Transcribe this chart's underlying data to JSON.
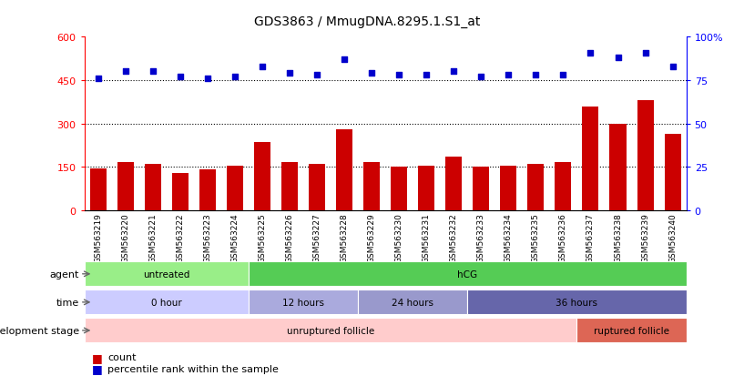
{
  "title": "GDS3863 / MmugDNA.8295.1.S1_at",
  "samples": [
    "GSM563219",
    "GSM563220",
    "GSM563221",
    "GSM563222",
    "GSM563223",
    "GSM563224",
    "GSM563225",
    "GSM563226",
    "GSM563227",
    "GSM563228",
    "GSM563229",
    "GSM563230",
    "GSM563231",
    "GSM563232",
    "GSM563233",
    "GSM563234",
    "GSM563235",
    "GSM563236",
    "GSM563237",
    "GSM563238",
    "GSM563239",
    "GSM563240"
  ],
  "counts": [
    145,
    165,
    160,
    130,
    140,
    155,
    235,
    165,
    160,
    280,
    165,
    150,
    155,
    185,
    150,
    155,
    160,
    165,
    360,
    300,
    380,
    265
  ],
  "percentiles": [
    76,
    80,
    80,
    77,
    76,
    77,
    83,
    79,
    78,
    87,
    79,
    78,
    78,
    80,
    77,
    78,
    78,
    78,
    91,
    88,
    91,
    83
  ],
  "bar_color": "#cc0000",
  "dot_color": "#0000cc",
  "left_ylim": [
    0,
    600
  ],
  "left_yticks": [
    0,
    150,
    300,
    450,
    600
  ],
  "right_ylim": [
    0,
    100
  ],
  "right_yticks": [
    0,
    25,
    50,
    75,
    100
  ],
  "hlines": [
    150,
    300,
    450
  ],
  "agent_groups": [
    {
      "label": "untreated",
      "start": 0,
      "end": 6,
      "color": "#99ee88"
    },
    {
      "label": "hCG",
      "start": 6,
      "end": 22,
      "color": "#55cc55"
    }
  ],
  "time_groups": [
    {
      "label": "0 hour",
      "start": 0,
      "end": 6,
      "color": "#ccccff"
    },
    {
      "label": "12 hours",
      "start": 6,
      "end": 10,
      "color": "#aaaadd"
    },
    {
      "label": "24 hours",
      "start": 10,
      "end": 14,
      "color": "#9999cc"
    },
    {
      "label": "36 hours",
      "start": 14,
      "end": 22,
      "color": "#6666aa"
    }
  ],
  "dev_groups": [
    {
      "label": "unruptured follicle",
      "start": 0,
      "end": 18,
      "color": "#ffcccc"
    },
    {
      "label": "ruptured follicle",
      "start": 18,
      "end": 22,
      "color": "#dd6655"
    }
  ],
  "label_agent": "agent",
  "label_time": "time",
  "label_dev": "development stage",
  "legend_count": "count",
  "legend_pct": "percentile rank within the sample",
  "bg_color": "#ffffff"
}
